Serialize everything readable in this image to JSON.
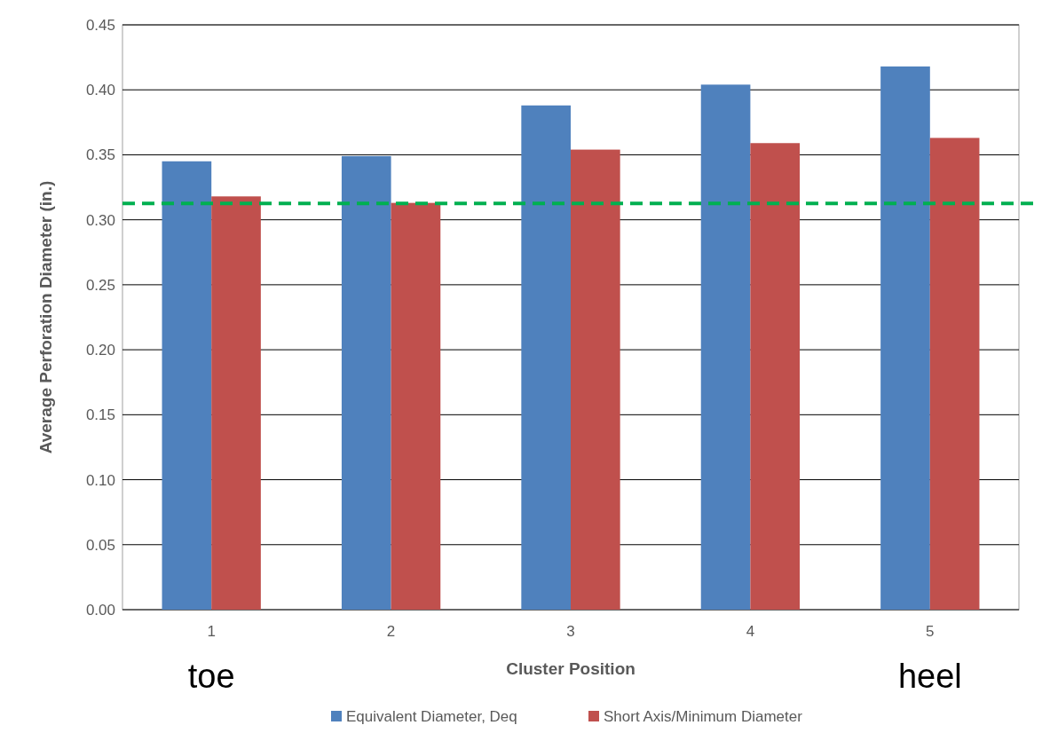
{
  "chart_data": {
    "type": "bar",
    "xlabel": "Cluster Position",
    "ylabel": "Average Perforation Diameter (in.)",
    "categories": [
      "1",
      "2",
      "3",
      "4",
      "5"
    ],
    "series": [
      {
        "name": "Equivalent Diameter, Deq",
        "color": "#4f81bd",
        "values": [
          0.345,
          0.349,
          0.388,
          0.404,
          0.418
        ]
      },
      {
        "name": "Short Axis/Minimum Diameter",
        "color": "#c0504d",
        "values": [
          0.318,
          0.313,
          0.354,
          0.359,
          0.363
        ]
      }
    ],
    "ylim": [
      0,
      0.45
    ],
    "yticks": [
      {
        "value": 0,
        "label": "0.00"
      },
      {
        "value": 0.05,
        "label": "0.05"
      },
      {
        "value": 0.1,
        "label": "0.10"
      },
      {
        "value": 0.15,
        "label": "0.15"
      },
      {
        "value": 0.2,
        "label": "0.20"
      },
      {
        "value": 0.25,
        "label": "0.25"
      },
      {
        "value": 0.3,
        "label": "0.30"
      },
      {
        "value": 0.35,
        "label": "0.35"
      },
      {
        "value": 0.4,
        "label": "0.40"
      },
      {
        "value": 0.45,
        "label": "0.45"
      }
    ],
    "grid": "y",
    "legend": "bottom",
    "ref_lines": [
      {
        "axis": "y",
        "value": 0.3125,
        "color": "#00b050",
        "line_style": "dashed"
      }
    ],
    "annotations": [
      "toe",
      "heel"
    ]
  }
}
